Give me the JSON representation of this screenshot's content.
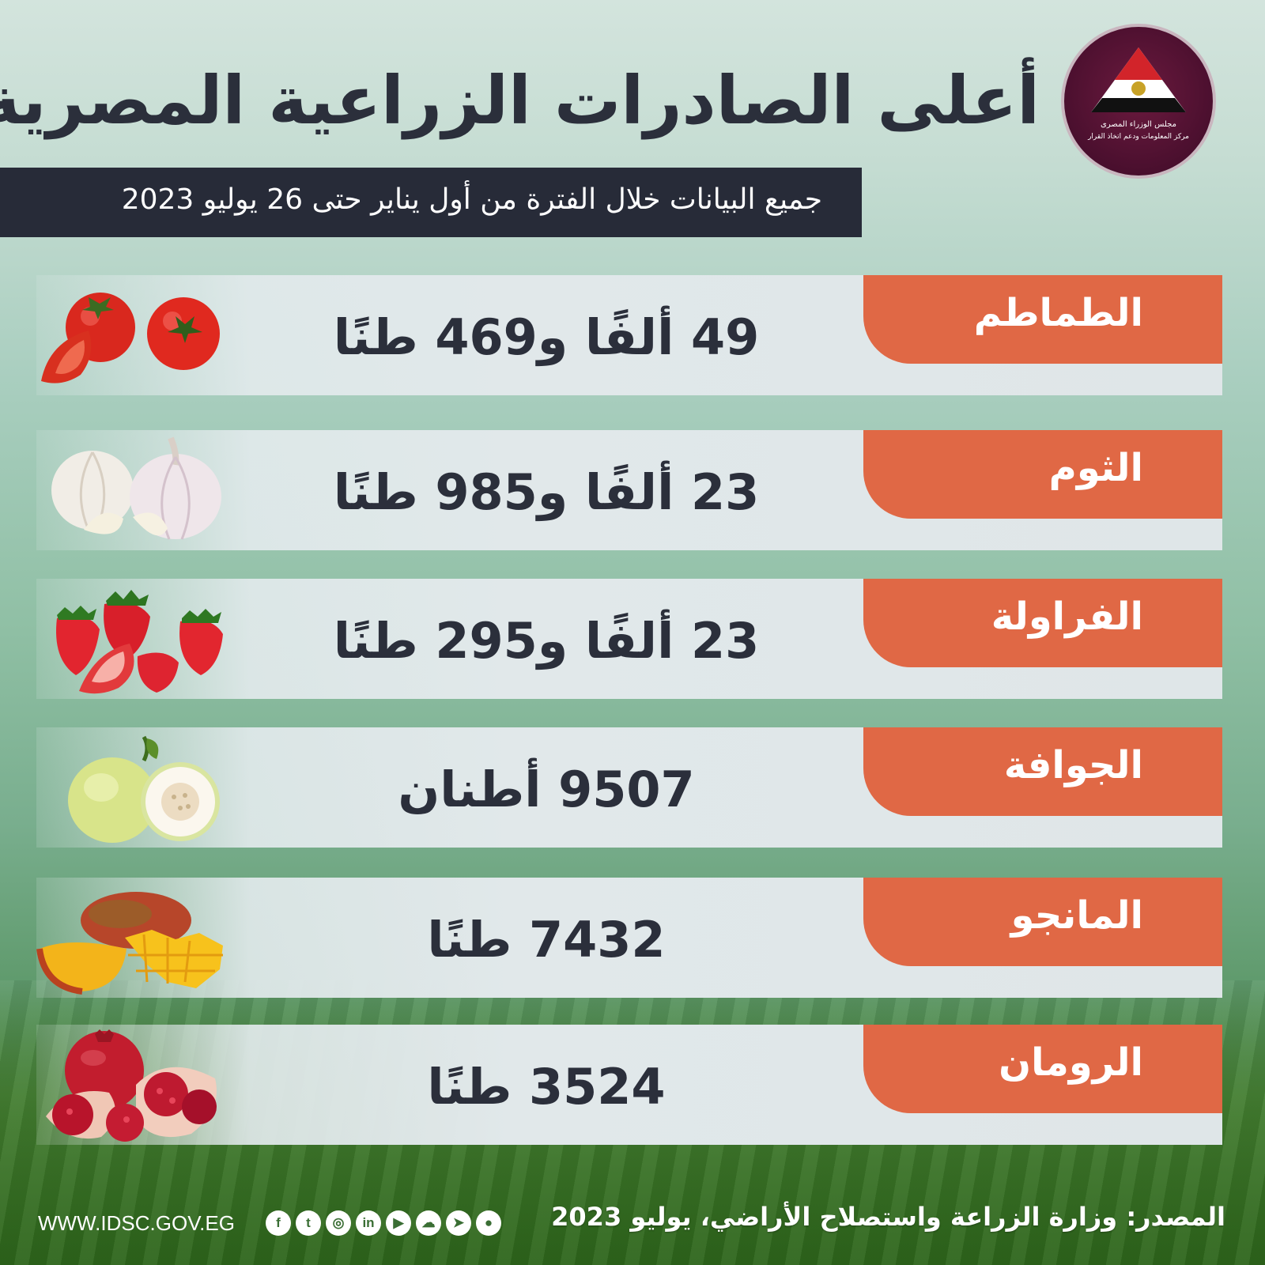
{
  "header": {
    "title": "أعلى الصادرات الزراعية المصرية",
    "subtitle": "جميع البيانات خلال الفترة من أول يناير حتى 26 يوليو 2023"
  },
  "logo": {
    "line1": "مجلس الوزراء المصرى",
    "line2": "مركز المعلومات ودعم اتخاذ القرار",
    "colors": {
      "background": "#4a0f2e",
      "triangle_red": "#d2242a",
      "triangle_black": "#111111"
    }
  },
  "rows": [
    {
      "label": "الطماطم",
      "value": "49 ألفًا و469 طنًا",
      "icon": "tomato-icon"
    },
    {
      "label": "الثوم",
      "value": "23 ألفًا و985 طنًا",
      "icon": "garlic-icon"
    },
    {
      "label": "الفراولة",
      "value": "23 ألفًا و295 طنًا",
      "icon": "strawberry-icon"
    },
    {
      "label": "الجوافة",
      "value": "9507 أطنان",
      "icon": "guava-icon"
    },
    {
      "label": "المانجو",
      "value": "7432 طنًا",
      "icon": "mango-icon"
    },
    {
      "label": "الرومان",
      "value": "3524 طنًا",
      "icon": "pomegranate-icon"
    }
  ],
  "footer": {
    "source": "المصدر: وزارة الزراعة واستصلاح الأراضي، يوليو 2023",
    "url": "WWW.IDSC.GOV.EG",
    "socials": [
      {
        "icon": "facebook-icon",
        "glyph": "f"
      },
      {
        "icon": "twitter-icon",
        "glyph": "t"
      },
      {
        "icon": "instagram-icon",
        "glyph": "◎"
      },
      {
        "icon": "linkedin-icon",
        "glyph": "in"
      },
      {
        "icon": "youtube-icon",
        "glyph": "▶"
      },
      {
        "icon": "soundcloud-icon",
        "glyph": "☁"
      },
      {
        "icon": "telegram-icon",
        "glyph": "➤"
      },
      {
        "icon": "whatsapp-icon",
        "glyph": "●"
      }
    ]
  },
  "colors": {
    "accent": "#e06845",
    "dark": "#272b38",
    "text": "#2b2f3b",
    "row_bg": "#e1e8ea"
  }
}
